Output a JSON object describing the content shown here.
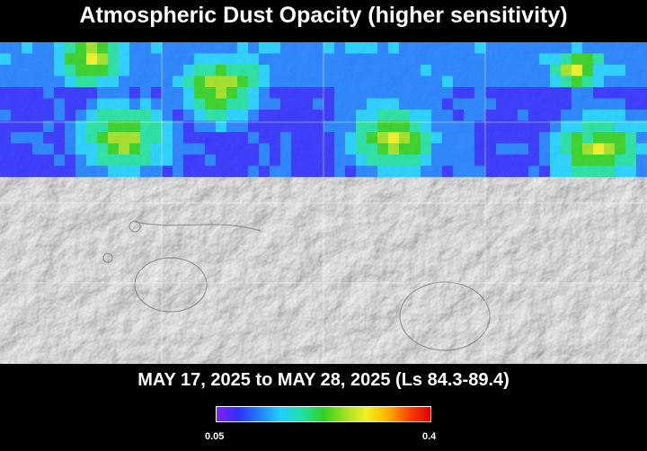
{
  "title": "Atmospheric Dust Opacity (higher sensitivity)",
  "date_range": "MAY 17, 2025 to MAY 28, 2025 (Ls 84.3-89.4)",
  "colorbar": {
    "min_label": "0.05",
    "max_label": "0.4",
    "colors": [
      "#8020ff",
      "#3030ff",
      "#2080ff",
      "#20d0ff",
      "#20e0a0",
      "#30d020",
      "#a0e020",
      "#f0f020",
      "#ffb000",
      "#ff4000",
      "#e00000"
    ]
  },
  "map": {
    "base": "shaded-relief",
    "overlay": "dust-opacity"
  }
}
